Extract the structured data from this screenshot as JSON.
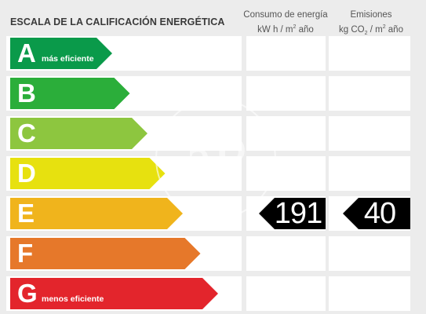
{
  "title": "ESCALA DE LA CALIFICACIÓN ENERGÉTICA",
  "columns": {
    "consumo": {
      "line1": "Consumo de energía",
      "line2_pre": "kW h  / m",
      "line2_sup": "2",
      "line2_post": " año"
    },
    "emisiones": {
      "line1": "Emisiones",
      "line2_pre": "kg CO",
      "line2_sub": "2",
      "line2_mid": "  / m",
      "line2_sup": "2",
      "line2_post": " año"
    }
  },
  "ratings": [
    {
      "letter": "A",
      "sublabel": "más eficiente",
      "color": "#0a9a4a"
    },
    {
      "letter": "B",
      "sublabel": "",
      "color": "#2bae3a"
    },
    {
      "letter": "C",
      "sublabel": "",
      "color": "#8dc63f"
    },
    {
      "letter": "D",
      "sublabel": "",
      "color": "#e7e10f"
    },
    {
      "letter": "E",
      "sublabel": "",
      "color": "#f0b41c"
    },
    {
      "letter": "F",
      "sublabel": "",
      "color": "#e6782a"
    },
    {
      "letter": "G",
      "sublabel": "menos eficiente",
      "color": "#e3252c"
    }
  ],
  "result": {
    "rating": "E",
    "consumo_value": "191",
    "emisiones_value": "40",
    "box_color": "#000000"
  },
  "watermark_text": "aP"
}
